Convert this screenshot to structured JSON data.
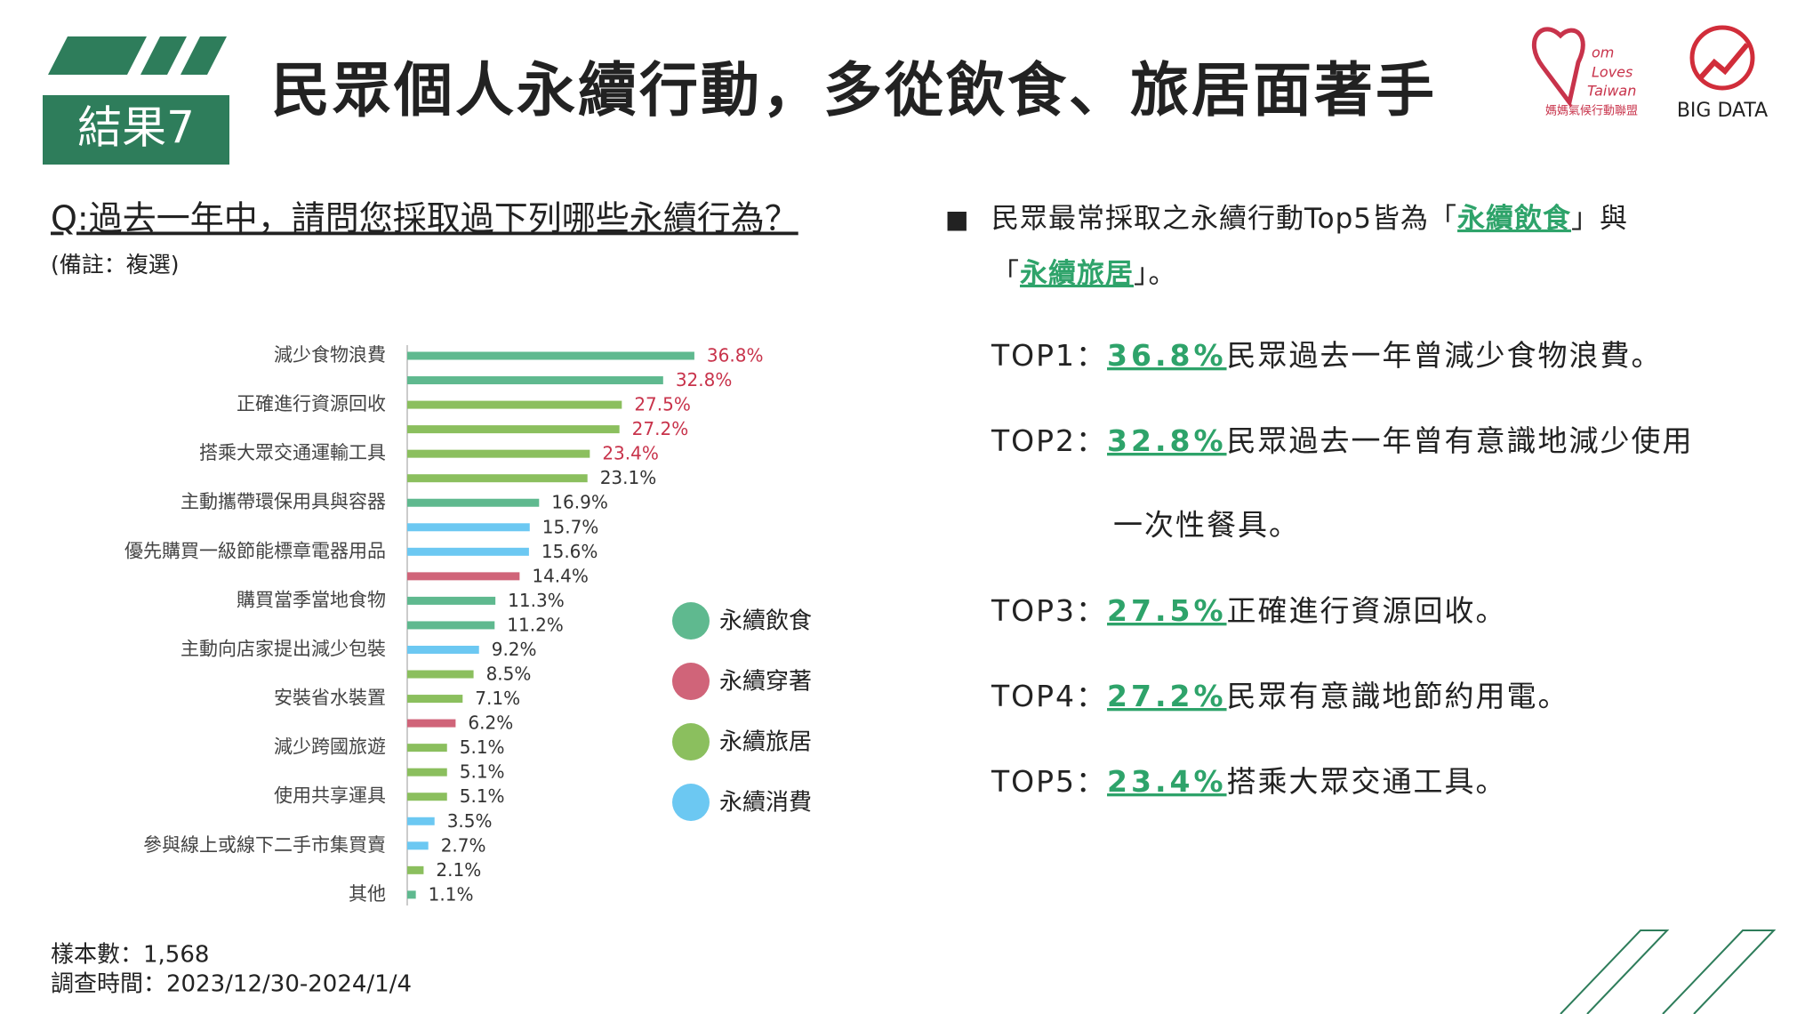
{
  "header": {
    "tag": "結果7",
    "title": "民眾個人永續行動，多從飲食、旅居面著手"
  },
  "logos": {
    "mom": [
      "om",
      "Loves",
      "Taiwan"
    ],
    "mom_sub": "媽媽氣候行動聯盟",
    "bigdata": "BIG DATA"
  },
  "question": "Q:過去一年中，請問您採取過下列哪些永續行為？",
  "note": "(備註：複選)",
  "chart_data": {
    "type": "bar",
    "orientation": "horizontal",
    "categories": [
      "減少食物浪費",
      null,
      "正確進行資源回收",
      null,
      "搭乘大眾交通運輸工具",
      null,
      "主動攜帶環保用具與容器",
      null,
      "優先購買一級節能標章電器用品",
      null,
      "購買當季當地食物",
      null,
      "主動向店家提出減少包裝",
      null,
      "安裝省水裝置",
      null,
      "減少跨國旅遊",
      null,
      "使用共享運具",
      null,
      "參與線上或線下二手市集買賣",
      null,
      "其他"
    ],
    "xlim": [
      0,
      40
    ],
    "series": [
      {
        "name": "永續飲食",
        "color": "#5fb98f",
        "values": [
          36.8,
          32.8,
          null,
          null,
          null,
          null,
          16.9,
          null,
          null,
          null,
          11.3,
          11.2,
          null,
          null,
          null,
          null,
          null,
          null,
          null,
          null,
          null,
          null,
          1.1
        ],
        "value_labels": [
          "36.8%",
          "32.8%",
          null,
          null,
          null,
          null,
          "16.9%",
          null,
          null,
          null,
          "11.3%",
          "11.2%",
          null,
          null,
          null,
          null,
          null,
          null,
          null,
          null,
          null,
          null,
          "1.1%"
        ],
        "value_label_colors": [
          "#c8334b",
          "#c8334b",
          null,
          null,
          null,
          null,
          "#333333",
          null,
          null,
          null,
          "#333333",
          "#333333",
          null,
          null,
          null,
          null,
          null,
          null,
          null,
          null,
          null,
          null,
          "#333333"
        ]
      },
      {
        "name": "永續穿著",
        "color": "#d06479",
        "values": [
          null,
          null,
          null,
          null,
          null,
          null,
          null,
          null,
          null,
          14.4,
          null,
          null,
          null,
          null,
          null,
          6.2,
          null,
          null,
          null,
          null,
          null,
          null,
          null
        ],
        "value_labels": [
          null,
          null,
          null,
          null,
          null,
          null,
          null,
          null,
          null,
          "14.4%",
          null,
          null,
          null,
          null,
          null,
          "6.2%",
          null,
          null,
          null,
          null,
          null,
          null,
          null
        ],
        "value_label_colors": [
          null,
          null,
          null,
          null,
          null,
          null,
          null,
          null,
          null,
          "#333333",
          null,
          null,
          null,
          null,
          null,
          "#333333",
          null,
          null,
          null,
          null,
          null,
          null,
          null
        ]
      },
      {
        "name": "永續旅居",
        "color": "#8bbf5e",
        "values": [
          null,
          null,
          27.5,
          27.2,
          23.4,
          23.1,
          null,
          null,
          null,
          null,
          null,
          null,
          null,
          8.5,
          7.1,
          null,
          5.1,
          5.1,
          5.1,
          null,
          null,
          2.1,
          null
        ],
        "value_labels": [
          null,
          null,
          "27.5%",
          "27.2%",
          "23.4%",
          "23.1%",
          null,
          null,
          null,
          null,
          null,
          null,
          null,
          "8.5%",
          "7.1%",
          null,
          "5.1%",
          "5.1%",
          "5.1%",
          null,
          null,
          "2.1%",
          null
        ],
        "value_label_colors": [
          null,
          null,
          "#c8334b",
          "#c8334b",
          "#c8334b",
          "#333333",
          null,
          null,
          null,
          null,
          null,
          null,
          null,
          "#333333",
          "#333333",
          null,
          "#333333",
          "#333333",
          "#333333",
          null,
          null,
          "#333333",
          null
        ]
      },
      {
        "name": "永續消費",
        "color": "#6cc8f2",
        "values": [
          null,
          null,
          null,
          null,
          null,
          null,
          null,
          15.7,
          15.6,
          null,
          null,
          null,
          9.2,
          null,
          null,
          null,
          null,
          null,
          null,
          3.5,
          2.7,
          null,
          null
        ],
        "value_labels": [
          null,
          null,
          null,
          null,
          null,
          null,
          null,
          "15.7%",
          "15.6%",
          null,
          null,
          null,
          "9.2%",
          null,
          null,
          null,
          null,
          null,
          null,
          "3.5%",
          "2.7%",
          null,
          null
        ],
        "value_label_colors": [
          null,
          null,
          null,
          null,
          null,
          null,
          null,
          "#333333",
          "#333333",
          null,
          null,
          null,
          "#333333",
          null,
          null,
          null,
          null,
          null,
          null,
          "#333333",
          "#333333",
          null,
          null
        ]
      }
    ]
  },
  "summary": [
    [
      "民眾最常採取之永續行動Top5皆為「",
      "永續飲食",
      "」與"
    ],
    [
      "「",
      "永續旅居",
      "」。"
    ]
  ],
  "top": [
    {
      "label": "TOP1：",
      "value": "36.8%",
      "text": [
        "民眾過去一年曾減少食物浪費。"
      ]
    },
    {
      "label": "TOP2：",
      "value": "32.8%",
      "text": [
        "民眾過去一年曾有意識地減少使用",
        "一次性餐具。"
      ]
    },
    {
      "label": "TOP3：",
      "value": "27.5%",
      "text": [
        "正確進行資源回收。"
      ]
    },
    {
      "label": "TOP4：",
      "value": "27.2%",
      "text": [
        "民眾有意識地節約用電。"
      ]
    },
    {
      "label": "TOP5：",
      "value": "23.4%",
      "text": [
        "搭乘大眾交通工具。"
      ]
    }
  ],
  "footer": {
    "sample": "樣本數：1,568",
    "period": "調查時間：2023/12/30-2024/1/4"
  }
}
